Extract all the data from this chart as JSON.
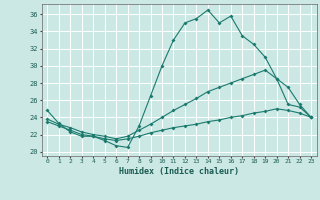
{
  "xlabel": "Humidex (Indice chaleur)",
  "bg_color": "#cce8e4",
  "grid_color": "#ffffff",
  "line_color": "#1a7a6e",
  "xlim": [
    -0.5,
    23.5
  ],
  "ylim": [
    19.5,
    37.2
  ],
  "xticks": [
    0,
    1,
    2,
    3,
    4,
    5,
    6,
    7,
    8,
    9,
    10,
    11,
    12,
    13,
    14,
    15,
    16,
    17,
    18,
    19,
    20,
    21,
    22,
    23
  ],
  "yticks": [
    20,
    22,
    24,
    26,
    28,
    30,
    32,
    34,
    36
  ],
  "line1_x": [
    0,
    1,
    2,
    3,
    4,
    5,
    6,
    7,
    8,
    9,
    10,
    11,
    12,
    13,
    14,
    15,
    16,
    17,
    18,
    19,
    20,
    21,
    22,
    23
  ],
  "line1_y": [
    24.8,
    23.3,
    22.3,
    21.8,
    21.8,
    21.3,
    20.7,
    20.5,
    23.0,
    26.5,
    30.0,
    33.0,
    35.0,
    35.5,
    36.5,
    35.0,
    35.8,
    33.5,
    32.5,
    31.0,
    28.5,
    25.5,
    25.2,
    24.0
  ],
  "line2_x": [
    0,
    1,
    2,
    3,
    4,
    5,
    6,
    7,
    8,
    9,
    10,
    11,
    12,
    13,
    14,
    15,
    16,
    17,
    18,
    19,
    20,
    21,
    22,
    23
  ],
  "line2_y": [
    23.8,
    23.2,
    22.8,
    22.3,
    22.0,
    21.8,
    21.5,
    21.8,
    22.5,
    23.2,
    24.0,
    24.8,
    25.5,
    26.2,
    27.0,
    27.5,
    28.0,
    28.5,
    29.0,
    29.5,
    28.5,
    27.5,
    25.5,
    24.0
  ],
  "line3_x": [
    0,
    1,
    2,
    3,
    4,
    5,
    6,
    7,
    8,
    9,
    10,
    11,
    12,
    13,
    14,
    15,
    16,
    17,
    18,
    19,
    20,
    21,
    22,
    23
  ],
  "line3_y": [
    23.5,
    23.0,
    22.5,
    22.0,
    21.8,
    21.5,
    21.3,
    21.5,
    21.8,
    22.2,
    22.5,
    22.8,
    23.0,
    23.2,
    23.5,
    23.7,
    24.0,
    24.2,
    24.5,
    24.7,
    25.0,
    24.8,
    24.5,
    24.0
  ]
}
